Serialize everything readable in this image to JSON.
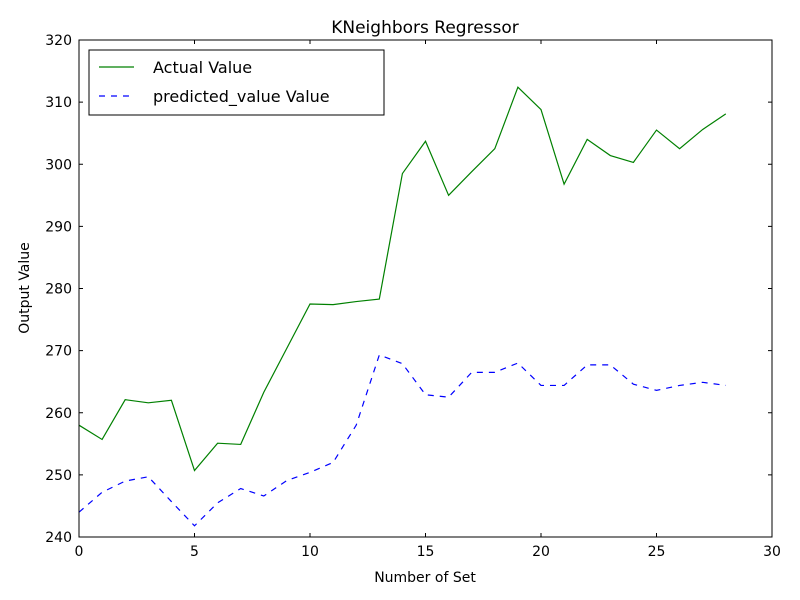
{
  "chart_data": {
    "type": "line",
    "title": "KNeighbors Regressor",
    "xlabel": "Number of Set",
    "ylabel": "Output Value",
    "xlim": [
      0,
      30
    ],
    "ylim": [
      240,
      320
    ],
    "xticks": [
      0,
      5,
      10,
      15,
      20,
      25,
      30
    ],
    "yticks": [
      240,
      250,
      260,
      270,
      280,
      290,
      300,
      310,
      320
    ],
    "grid": false,
    "legend_position": "top-left",
    "x": [
      0,
      1,
      2,
      3,
      4,
      5,
      6,
      7,
      8,
      9,
      10,
      11,
      12,
      13,
      14,
      15,
      16,
      17,
      18,
      19,
      20,
      21,
      22,
      23,
      24,
      25,
      26,
      27,
      28
    ],
    "series": [
      {
        "name": "Actual Value",
        "color": "#008000",
        "style": "solid",
        "values": [
          258.0,
          255.7,
          262.1,
          261.6,
          262.0,
          250.7,
          255.1,
          254.9,
          263.3,
          270.4,
          277.5,
          277.4,
          277.9,
          278.3,
          298.5,
          303.7,
          295.0,
          298.8,
          302.5,
          312.4,
          308.8,
          296.8,
          304.0,
          301.4,
          300.3,
          305.5,
          302.5,
          305.6,
          308.1
        ]
      },
      {
        "name": "predicted_value Value",
        "color": "#0000ff",
        "style": "dashed",
        "values": [
          244.0,
          247.2,
          249.0,
          249.7,
          245.7,
          241.8,
          245.5,
          247.8,
          246.6,
          249.1,
          250.4,
          252.0,
          258.0,
          269.3,
          267.9,
          262.9,
          262.5,
          266.5,
          266.5,
          268.0,
          264.4,
          264.4,
          267.7,
          267.7,
          264.6,
          263.6,
          264.4,
          264.9,
          264.4
        ]
      }
    ]
  }
}
